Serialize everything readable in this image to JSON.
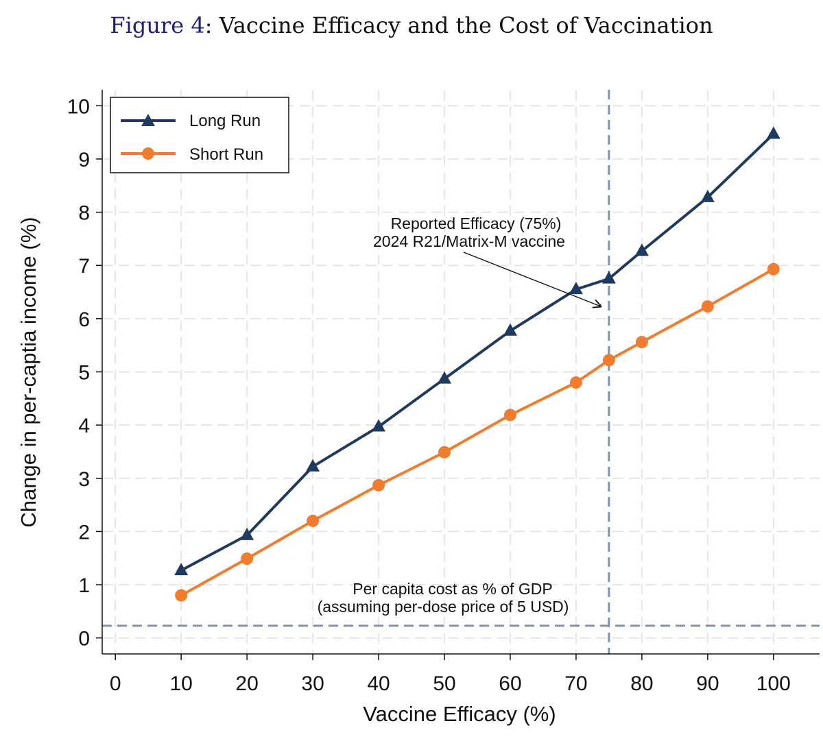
{
  "figure": {
    "number_label": "Figure 4",
    "title_text": ": Vaccine Efficacy and the Cost of Vaccination"
  },
  "chart_data": {
    "type": "line",
    "title": "Vaccine Efficacy and the Cost of Vaccination",
    "xlabel": "Vaccine Efficacy (%)",
    "ylabel": "Change in per-captia income (%)",
    "xlim": [
      -2,
      107
    ],
    "ylim": [
      -0.3,
      10.3
    ],
    "x_ticks": [
      0,
      10,
      20,
      30,
      40,
      50,
      60,
      70,
      80,
      90,
      100
    ],
    "y_ticks": [
      0,
      1,
      2,
      3,
      4,
      5,
      6,
      7,
      8,
      9,
      10
    ],
    "x": [
      10,
      20,
      30,
      40,
      50,
      60,
      70,
      75,
      80,
      90,
      100
    ],
    "series": [
      {
        "name": "Long Run",
        "marker": "triangle",
        "color": "#1f3a5f",
        "values": [
          1.27,
          1.93,
          3.22,
          3.97,
          4.87,
          5.77,
          6.55,
          6.75,
          7.27,
          8.28,
          9.47
        ]
      },
      {
        "name": "Short Run",
        "marker": "circle",
        "color": "#f07d2e",
        "values": [
          0.8,
          1.49,
          2.2,
          2.87,
          3.49,
          4.19,
          4.8,
          5.22,
          5.56,
          6.23,
          6.93
        ]
      }
    ],
    "reference_lines": {
      "vertical": {
        "x": 75,
        "color": "#7f93ae"
      },
      "horizontal": {
        "y": 0.23,
        "color": "#7f93ae"
      }
    },
    "annotations": {
      "efficacy_line1": "Reported Efficacy (75%)",
      "efficacy_line2": "2024 R21/Matrix-M vaccine",
      "cost_line1": "Per capita cost as % of GDP",
      "cost_line2": "(assuming per-dose price of 5 USD)"
    },
    "legend": {
      "position": "top-left",
      "items": [
        "Long Run",
        "Short Run"
      ]
    },
    "grid": true
  }
}
